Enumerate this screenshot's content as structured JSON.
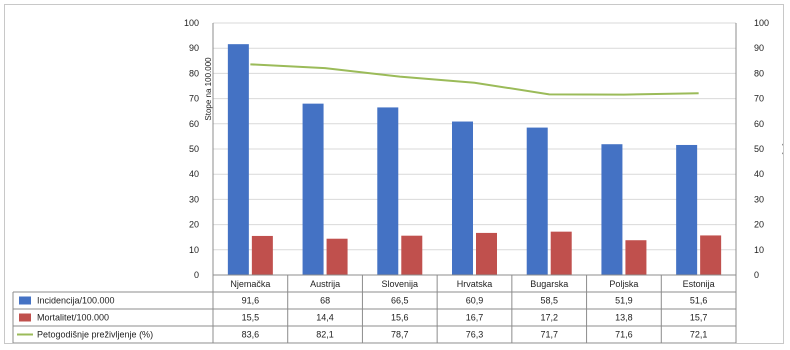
{
  "chart_data": {
    "type": "bar",
    "categories": [
      "Njemačka",
      "Austrija",
      "Slovenija",
      "Hrvatska",
      "Bugarska",
      "Poljska",
      "Estonija"
    ],
    "series": [
      {
        "name": "Incidencija/100.000",
        "type": "bar",
        "axis": "left",
        "color": "#4472c4",
        "values": [
          91.6,
          68,
          66.5,
          60.9,
          58.5,
          51.9,
          51.6
        ],
        "labels": [
          "91,6",
          "68",
          "66,5",
          "60,9",
          "58,5",
          "51,9",
          "51,6"
        ]
      },
      {
        "name": "Mortalitet/100.000",
        "type": "bar",
        "axis": "left",
        "color": "#c0504d",
        "values": [
          15.5,
          14.4,
          15.6,
          16.7,
          17.2,
          13.8,
          15.7
        ],
        "labels": [
          "15,5",
          "14,4",
          "15,6",
          "16,7",
          "17,2",
          "13,8",
          "15,7"
        ]
      },
      {
        "name": "Petogodišnje preživljenje (%)",
        "type": "line",
        "axis": "right",
        "color": "#9bbb59",
        "values": [
          83.6,
          82.1,
          78.7,
          76.3,
          71.7,
          71.6,
          72.1
        ],
        "labels": [
          "83,6",
          "82,1",
          "78,7",
          "76,3",
          "71,7",
          "71,6",
          "72,1"
        ]
      }
    ],
    "ylabel": "Stope na 100.000",
    "y2label": "[%]",
    "ylim": [
      0,
      100
    ],
    "y2lim": [
      0,
      100
    ],
    "yticks": [
      0,
      10,
      20,
      30,
      40,
      50,
      60,
      70,
      80,
      90,
      100
    ],
    "legend": "data-table-below"
  }
}
